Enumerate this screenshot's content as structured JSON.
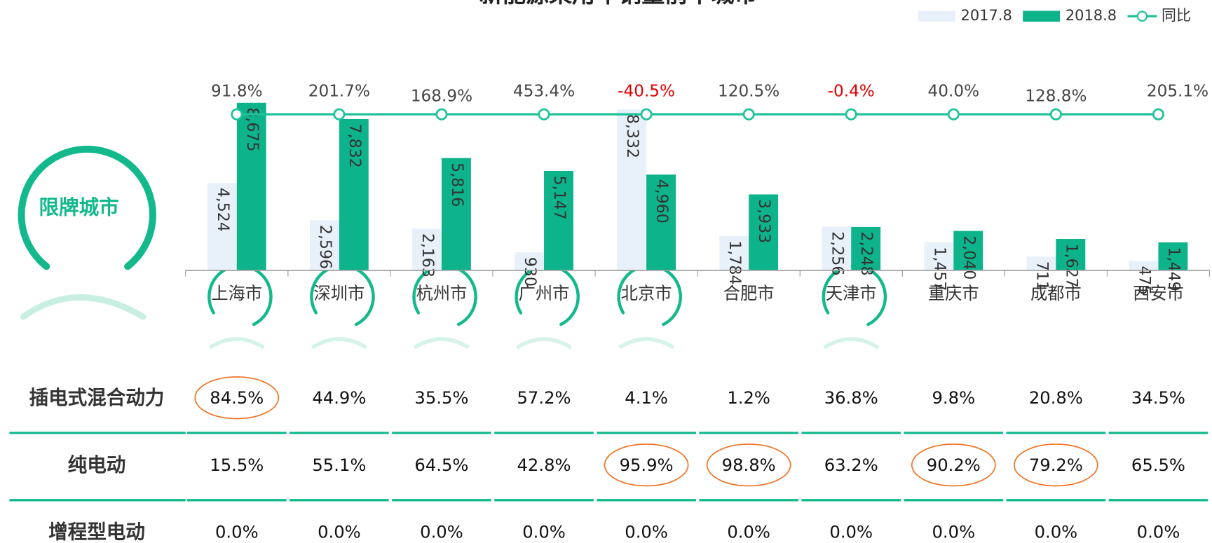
{
  "chart_data": {
    "type": "bar",
    "title": "新能源乘用车销量前十城市",
    "badge": "限牌城市",
    "categories": [
      "上海市",
      "深圳市",
      "杭州市",
      "广州市",
      "北京市",
      "合肥市",
      "天津市",
      "重庆市",
      "成都市",
      "西安市"
    ],
    "series": [
      {
        "name": "2017.8",
        "color": "#e8f0fa",
        "values": [
          4524,
          2596,
          2163,
          930,
          8332,
          1784,
          2256,
          1457,
          711,
          475
        ],
        "value_labels": [
          "4,524",
          "2,596",
          "2,163",
          "930",
          "8,332",
          "1,784",
          "2,256",
          "1,457",
          "711",
          "475"
        ]
      },
      {
        "name": "2018.8",
        "color": "#0db38a",
        "values": [
          8675,
          7832,
          5816,
          5147,
          4960,
          3933,
          2248,
          2040,
          1627,
          1449
        ],
        "value_labels": [
          "8,675",
          "7,832",
          "5,816",
          "5,147",
          "4,960",
          "3,933",
          "2,248",
          "2,040",
          "1,627",
          "1,449"
        ]
      },
      {
        "name": "同比",
        "type": "line",
        "color": "#1fc29a",
        "negative_color": "#e00000",
        "values": [
          91.8,
          201.7,
          168.9,
          453.4,
          -40.5,
          120.5,
          -0.4,
          40.0,
          128.8,
          205.1
        ],
        "value_labels": [
          "91.8%",
          "201.7%",
          "168.9%",
          "453.4%",
          "-40.5%",
          "120.5%",
          "-0.4%",
          "40.0%",
          "128.8%",
          "205.1%"
        ]
      }
    ],
    "ylim": [
      0,
      10000
    ]
  },
  "table": {
    "rows": [
      {
        "label": "插电式混合动力",
        "values": [
          "84.5%",
          "44.9%",
          "35.5%",
          "57.2%",
          "4.1%",
          "1.2%",
          "36.8%",
          "9.8%",
          "20.8%",
          "34.5%"
        ],
        "highlight": [
          0
        ]
      },
      {
        "label": "纯电动",
        "values": [
          "15.5%",
          "55.1%",
          "64.5%",
          "42.8%",
          "95.9%",
          "98.8%",
          "63.2%",
          "90.2%",
          "79.2%",
          "65.5%"
        ],
        "highlight": [
          4,
          5,
          7,
          8
        ]
      },
      {
        "label": "增程型电动",
        "values": [
          "0.0%",
          "0.0%",
          "0.0%",
          "0.0%",
          "0.0%",
          "0.0%",
          "0.0%",
          "0.0%",
          "0.0%",
          "0.0%"
        ],
        "highlight": []
      }
    ]
  }
}
